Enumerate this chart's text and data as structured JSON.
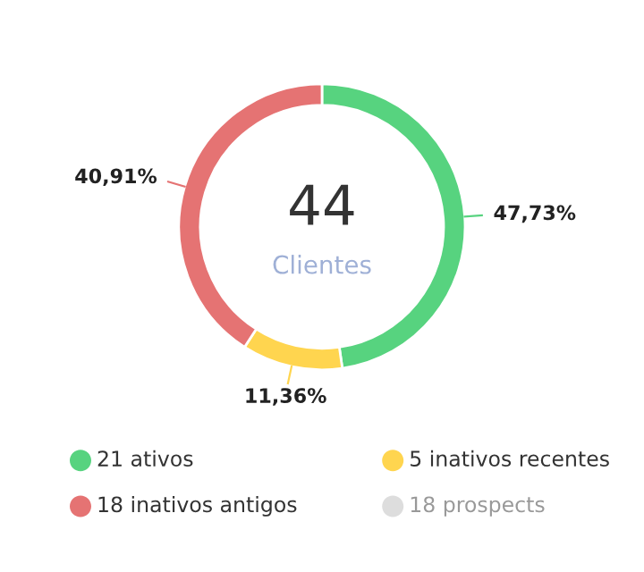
{
  "chart_data": {
    "type": "donut",
    "categories": [
      "21 ativos",
      "5 inativos recentes",
      "18 inativos antigos",
      "18 prospects"
    ],
    "values": [
      47.73,
      11.36,
      40.91,
      null
    ],
    "colors": [
      "#57d37f",
      "#ffd54f",
      "#e57373",
      "#dddddd"
    ],
    "value_labels": [
      "47,73%",
      "11,36%",
      "40,91%",
      null
    ],
    "legend": "bottom",
    "annotations": [
      "44",
      "Clientes"
    ]
  }
}
